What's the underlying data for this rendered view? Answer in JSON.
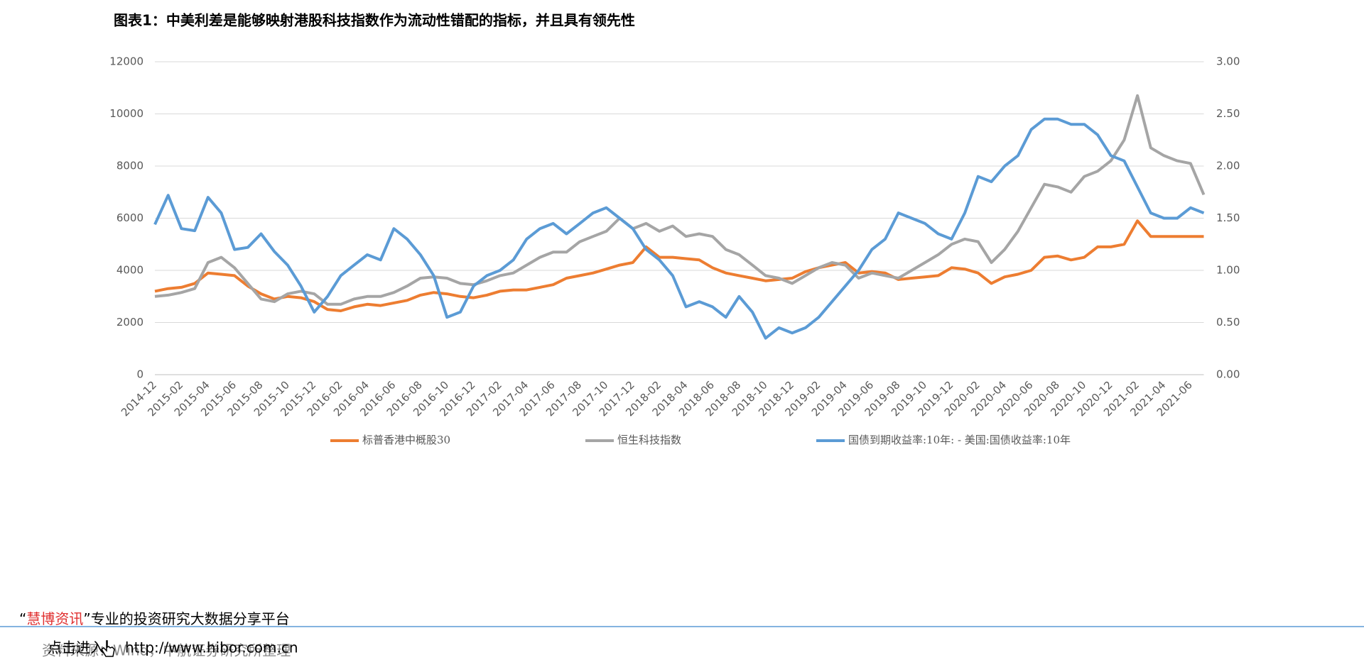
{
  "chart_data": {
    "type": "line",
    "title": "图表1：中美利差是能够映射港股科技指数作为流动性错配的指标，并且具有领先性",
    "categories": [
      "2014-12",
      null,
      "2015-02",
      null,
      "2015-04",
      null,
      "2015-06",
      null,
      "2015-08",
      null,
      "2015-10",
      null,
      "2015-12",
      null,
      "2016-02",
      null,
      "2016-04",
      null,
      "2016-06",
      null,
      "2016-08",
      null,
      "2016-10",
      null,
      "2016-12",
      null,
      "2017-02",
      null,
      "2017-04",
      null,
      "2017-06",
      null,
      "2017-08",
      null,
      "2017-10",
      null,
      "2017-12",
      null,
      "2018-02",
      null,
      "2018-04",
      null,
      "2018-06",
      null,
      "2018-08",
      null,
      "2018-10",
      null,
      "2018-12",
      null,
      "2019-02",
      null,
      "2019-04",
      null,
      "2019-06",
      null,
      "2019-08",
      null,
      "2019-10",
      null,
      "2019-12",
      null,
      "2020-02",
      null,
      "2020-04",
      null,
      "2020-06",
      null,
      "2020-08",
      null,
      "2020-10",
      null,
      "2020-12",
      null,
      "2021-02",
      null,
      "2021-04",
      null,
      "2021-06",
      null
    ],
    "series": [
      {
        "name": "标普香港中概股30",
        "color": "#ED7D31",
        "values": [
          3200,
          3300,
          3350,
          3500,
          3900,
          3850,
          3800,
          3400,
          3100,
          2900,
          3000,
          2950,
          2800,
          2500,
          2450,
          2600,
          2700,
          2650,
          2750,
          2850,
          3050,
          3150,
          3100,
          3000,
          2950,
          3050,
          3200,
          3250,
          3250,
          3350,
          3450,
          3700,
          3800,
          3900,
          4050,
          4200,
          4300,
          4900,
          4500,
          4500,
          4450,
          4400,
          4100,
          3900,
          3800,
          3700,
          3600,
          3650,
          3700,
          3950,
          4100,
          4200,
          4300,
          3900,
          3950,
          3900,
          3650,
          3700,
          3750,
          3800,
          4100,
          4050,
          3900,
          3500,
          3750,
          3850,
          4000,
          4500,
          4550,
          4400,
          4500,
          4900,
          4900,
          5000,
          5900,
          5300,
          5300,
          5300,
          5300,
          5300
        ]
      },
      {
        "name": "恒生科技指数",
        "color": "#A5A5A5",
        "values": [
          3000,
          3050,
          3150,
          3300,
          4300,
          4500,
          4100,
          3500,
          2900,
          2800,
          3100,
          3200,
          3100,
          2700,
          2700,
          2900,
          3000,
          3000,
          3150,
          3400,
          3700,
          3750,
          3700,
          3500,
          3450,
          3600,
          3800,
          3900,
          4200,
          4500,
          4700,
          4700,
          5100,
          5300,
          5500,
          6000,
          5600,
          5800,
          5500,
          5700,
          5300,
          5400,
          5300,
          4800,
          4600,
          4200,
          3800,
          3700,
          3500,
          3800,
          4100,
          4300,
          4200,
          3700,
          3900,
          3800,
          3700,
          4000,
          4300,
          4600,
          5000,
          5200,
          5100,
          4300,
          4800,
          5500,
          6400,
          7300,
          7200,
          7000,
          7600,
          7800,
          8200,
          9000,
          10700,
          8700,
          8400,
          8200,
          8100,
          6900
        ]
      },
      {
        "name": "国债到期收益率:10年: - 美国:国债收益率:10年",
        "color": "#5B9BD5",
        "axis": "y2",
        "values": [
          1.44,
          1.72,
          1.4,
          1.38,
          1.7,
          1.55,
          1.2,
          1.22,
          1.35,
          1.18,
          1.05,
          0.85,
          0.6,
          0.75,
          0.95,
          1.05,
          1.15,
          1.1,
          1.4,
          1.3,
          1.15,
          0.95,
          0.55,
          0.6,
          0.85,
          0.95,
          1.0,
          1.1,
          1.3,
          1.4,
          1.45,
          1.35,
          1.45,
          1.55,
          1.6,
          1.5,
          1.4,
          1.2,
          1.1,
          0.95,
          0.65,
          0.7,
          0.65,
          0.55,
          0.75,
          0.6,
          0.35,
          0.45,
          0.4,
          0.45,
          0.55,
          0.7,
          0.85,
          1.0,
          1.2,
          1.3,
          1.55,
          1.5,
          1.45,
          1.35,
          1.3,
          1.55,
          1.9,
          1.85,
          2.0,
          2.1,
          2.35,
          2.45,
          2.45,
          2.4,
          2.4,
          2.3,
          2.1,
          2.05,
          1.8,
          1.55,
          1.5,
          1.5,
          1.6,
          1.55
        ]
      }
    ],
    "ylim": [
      0,
      12000
    ],
    "yticks": [
      0,
      2000,
      4000,
      6000,
      8000,
      10000,
      12000
    ],
    "y2lim": [
      0,
      3
    ],
    "y2ticks": [
      {
        "value": 0,
        "label": "0.00"
      },
      {
        "value": 0.5,
        "label": "0.50"
      },
      {
        "value": 1,
        "label": "1.00"
      },
      {
        "value": 1.5,
        "label": "1.50"
      },
      {
        "value": 2,
        "label": "2.00"
      },
      {
        "value": 2.5,
        "label": "2.50"
      },
      {
        "value": 3,
        "label": "3.00"
      }
    ],
    "grid": true,
    "legend": "bottom"
  },
  "footer": {
    "quote_open": "“",
    "brand": "慧博资讯",
    "slogan": "”专业的投资研究大数据分享平台",
    "source": "资料来源：Wind，中航证券研究所整理",
    "link_text": "点击进入",
    "url": "http://www.hibor.com.cn"
  }
}
